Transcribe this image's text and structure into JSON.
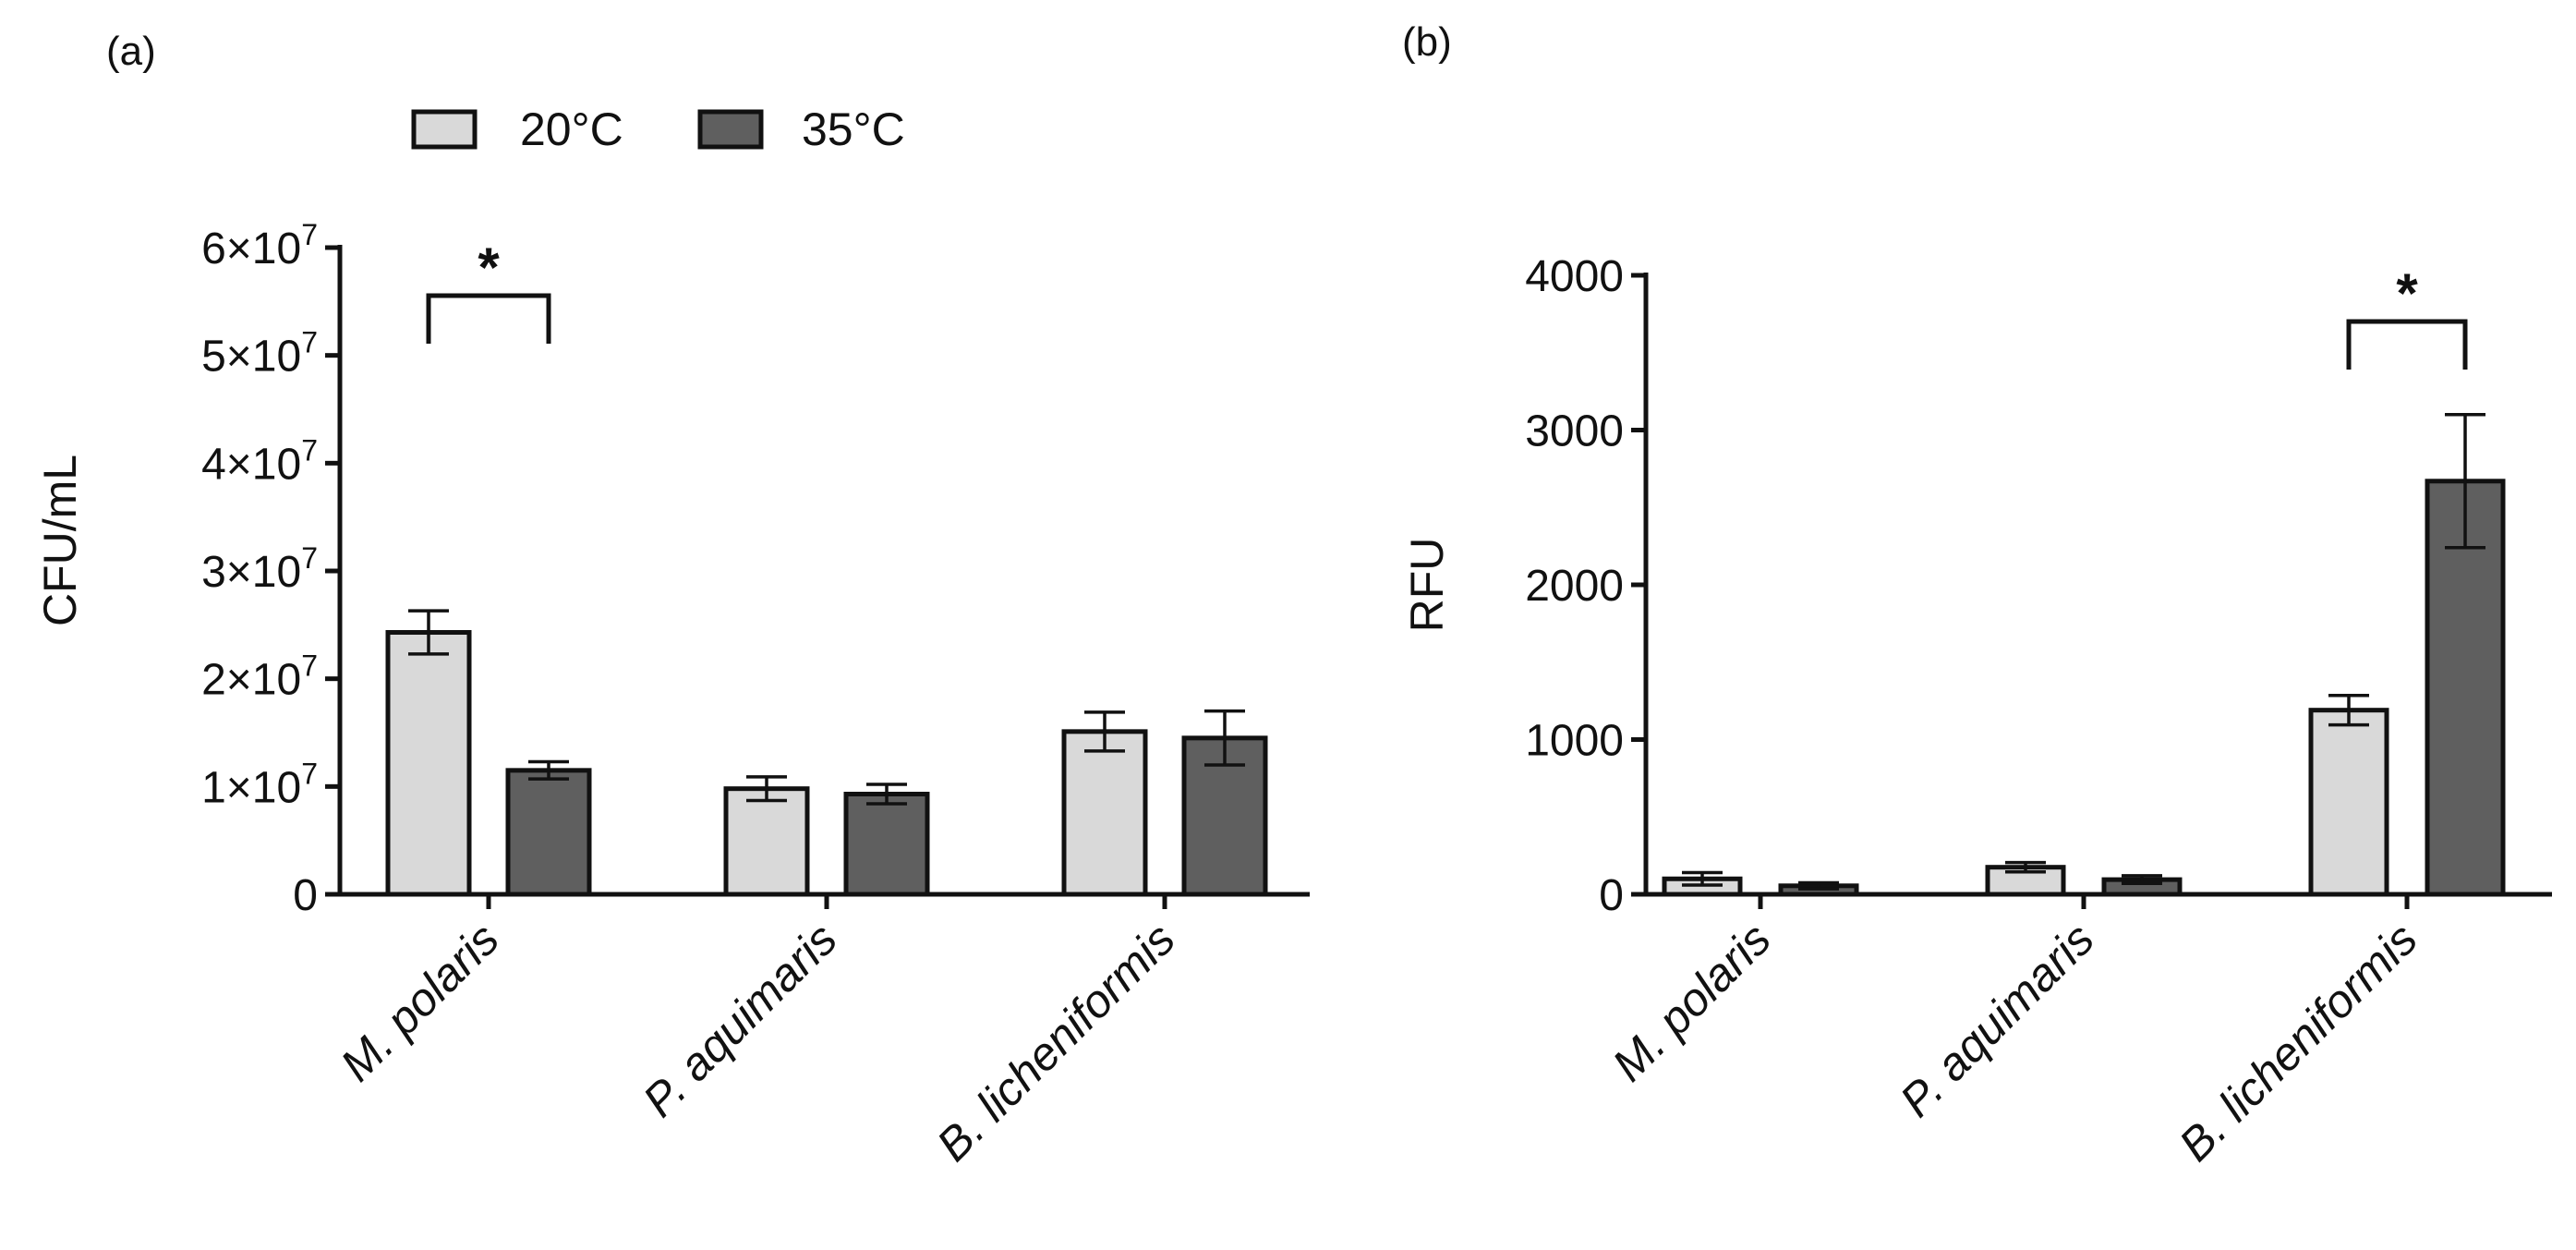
{
  "colors": {
    "series_0": "#d9d9d9",
    "series_1": "#5f5f5f",
    "stroke": "#111111"
  },
  "legend": [
    {
      "label": "20°C"
    },
    {
      "label": "35°C"
    }
  ],
  "chart_data": [
    {
      "type": "bar",
      "panel_label": "(a)",
      "ylabel": "CFU/mL",
      "ylim": [
        0,
        60000000
      ],
      "yticks": [
        0,
        10000000,
        20000000,
        30000000,
        40000000,
        50000000,
        60000000
      ],
      "ytick_labels": [
        {
          "base": "0",
          "exp": ""
        },
        {
          "base": "1×10",
          "exp": "7"
        },
        {
          "base": "2×10",
          "exp": "7"
        },
        {
          "base": "3×10",
          "exp": "7"
        },
        {
          "base": "4×10",
          "exp": "7"
        },
        {
          "base": "5×10",
          "exp": "7"
        },
        {
          "base": "6×10",
          "exp": "7"
        }
      ],
      "categories": [
        "M. polaris",
        "P. aquimaris",
        "B. licheniformis"
      ],
      "series": [
        {
          "name": "20°C",
          "values": [
            24300000,
            9800000,
            15100000
          ],
          "errors": [
            2000000,
            1100000,
            1800000
          ]
        },
        {
          "name": "35°C",
          "values": [
            11500000,
            9300000,
            14500000
          ],
          "errors": [
            800000,
            900000,
            2500000
          ]
        }
      ],
      "significance": [
        {
          "category": 0,
          "label": "*"
        }
      ]
    },
    {
      "type": "bar",
      "panel_label": "(b)",
      "ylabel": "RFU",
      "ylim": [
        0,
        4000
      ],
      "yticks": [
        0,
        1000,
        2000,
        3000,
        4000
      ],
      "ytick_labels": [
        {
          "base": "0",
          "exp": ""
        },
        {
          "base": "1000",
          "exp": ""
        },
        {
          "base": "2000",
          "exp": ""
        },
        {
          "base": "3000",
          "exp": ""
        },
        {
          "base": "4000",
          "exp": ""
        }
      ],
      "categories": [
        "M. polaris",
        "P. aquimaris",
        "B. licheniformis"
      ],
      "series": [
        {
          "name": "20°C",
          "values": [
            100,
            175,
            1190
          ],
          "errors": [
            40,
            30,
            95
          ]
        },
        {
          "name": "35°C",
          "values": [
            55,
            95,
            2670
          ],
          "errors": [
            20,
            25,
            430
          ]
        }
      ],
      "significance": [
        {
          "category": 2,
          "label": "*"
        }
      ]
    }
  ]
}
